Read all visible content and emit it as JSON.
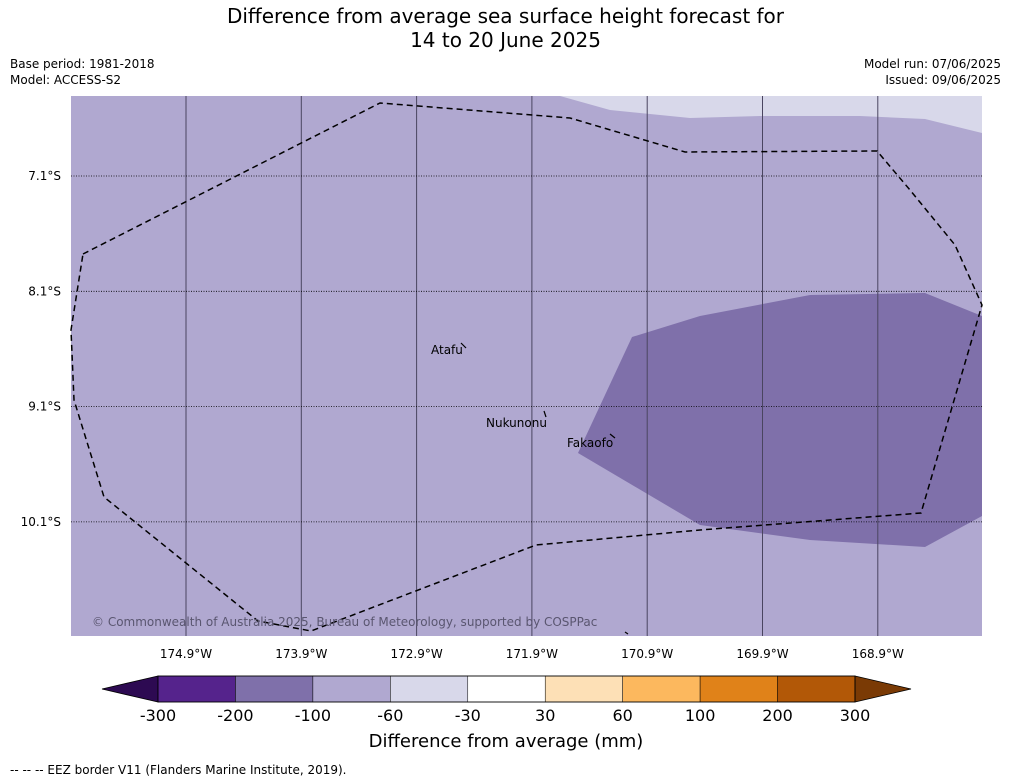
{
  "title_line1": "Difference from average sea surface height forecast for",
  "title_line2": "14 to 20 June 2025",
  "base_period": "Base period: 1981-2018",
  "model": "Model: ACCESS-S2",
  "model_run": "Model run: 07/06/2025",
  "issued": "Issued: 09/06/2025",
  "map": {
    "lon_range": [
      -175.9,
      -168.0
    ],
    "lat_range": [
      -11.2,
      -6.4
    ],
    "lon_ticks": [
      {
        "value": -174.9,
        "label": "174.9°W"
      },
      {
        "value": -173.9,
        "label": "173.9°W"
      },
      {
        "value": -172.9,
        "label": "172.9°W"
      },
      {
        "value": -171.9,
        "label": "171.9°W"
      },
      {
        "value": -170.9,
        "label": "170.9°W"
      },
      {
        "value": -169.9,
        "label": "169.9°W"
      },
      {
        "value": -168.9,
        "label": "168.9°W"
      }
    ],
    "lat_ticks": [
      {
        "value": -7.1,
        "label": "7.1°S"
      },
      {
        "value": -8.1,
        "label": "8.1°S"
      },
      {
        "value": -9.1,
        "label": "9.1°S"
      },
      {
        "value": -10.1,
        "label": "10.1°S"
      }
    ],
    "places": [
      {
        "name": "Atafu",
        "lon": -172.5,
        "lat": -8.55
      },
      {
        "name": "Nukunonu",
        "lon": -171.86,
        "lat": -9.17
      },
      {
        "name": "Fakaofo",
        "lon": -171.21,
        "lat": -9.37
      }
    ],
    "copyright": "© Commonwealth of Australia 2025, Bureau of Meteorology, supported by COSPPac",
    "colors": {
      "background_band": "#b0a8d0",
      "band_minus100_minus200": "#7f70aa",
      "band_minus30_minus60": "#d8d8ea"
    }
  },
  "colorbar": {
    "title": "Difference from average (mm)",
    "boundaries": [
      "-300",
      "-200",
      "-100",
      "-60",
      "-30",
      "30",
      "60",
      "100",
      "200",
      "300"
    ],
    "colors": [
      "#2d0a52",
      "#55238c",
      "#7f70aa",
      "#b0a8d0",
      "#d8d8ea",
      "#ffffff",
      "#fde0b6",
      "#fcb85e",
      "#e08219",
      "#b25807",
      "#7a3a05"
    ]
  },
  "footer": "--  --  -- EEZ border V11 (Flanders Marine Institute, 2019)."
}
